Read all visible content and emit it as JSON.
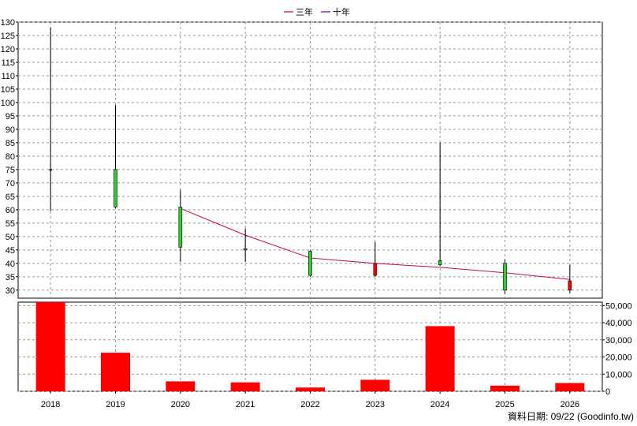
{
  "legend": [
    {
      "name": "三年",
      "color": "#cc0066"
    },
    {
      "name": "十年",
      "color": "#660099"
    }
  ],
  "footer": "資料日期: 09/22  (Goodinfo.tw)",
  "chart_data": [
    {
      "type": "candlestick",
      "categories": [
        "2018",
        "2019",
        "2020",
        "2021",
        "2022",
        "2023",
        "2024",
        "2025",
        "2026"
      ],
      "ylim": [
        27,
        130
      ],
      "yticks": [
        30,
        35,
        40,
        45,
        50,
        55,
        60,
        65,
        70,
        75,
        80,
        85,
        90,
        95,
        100,
        105,
        110,
        115,
        120,
        125,
        130
      ],
      "grid": true,
      "colors": {
        "up": "#33cc33",
        "down": "#ff0000",
        "flat": "#000000"
      },
      "candles": [
        {
          "open": 75,
          "close": 75,
          "high": 128,
          "low": 59.5
        },
        {
          "open": 61,
          "close": 75,
          "high": 99,
          "low": 60.5
        },
        {
          "open": 46,
          "close": 61,
          "high": 67.5,
          "low": 40.5
        },
        {
          "open": 45,
          "close": 45.5,
          "high": 53,
          "low": 40.5
        },
        {
          "open": 35.5,
          "close": 44.5,
          "high": 45,
          "low": 35
        },
        {
          "open": 40,
          "close": 35.5,
          "high": 48,
          "low": 35
        },
        {
          "open": 39.5,
          "close": 41,
          "high": 85,
          "low": 39
        },
        {
          "open": 30,
          "close": 40,
          "high": 41.5,
          "low": 28.5
        },
        {
          "open": 33.5,
          "close": 30,
          "high": 39.5,
          "low": 29
        }
      ],
      "series": [
        {
          "name": "三年",
          "color": "#cc0066",
          "values": [
            null,
            null,
            60.5,
            50.5,
            42,
            40,
            38.5,
            36.5,
            34
          ]
        }
      ]
    },
    {
      "type": "bar",
      "categories": [
        "2018",
        "2019",
        "2020",
        "2021",
        "2022",
        "2023",
        "2024",
        "2025",
        "2026"
      ],
      "values": [
        52000,
        22500,
        5800,
        5200,
        2200,
        6700,
        38000,
        3300,
        4800
      ],
      "ylim": [
        0,
        52000
      ],
      "yticks": [
        0,
        10000,
        20000,
        30000,
        40000,
        50000
      ],
      "ytick_labels": [
        "0",
        "10,000",
        "20,000",
        "30,000",
        "40,000",
        "50,000"
      ],
      "color": "#ff0000",
      "grid": true
    }
  ]
}
